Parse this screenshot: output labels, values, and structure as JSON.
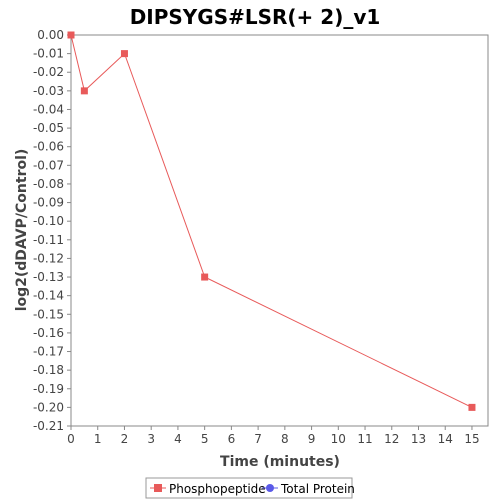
{
  "chart_data": {
    "type": "line",
    "title": "DIPSYGS#LSR(+ 2)_v1",
    "xlabel": "Time (minutes)",
    "ylabel": "log2(dDAVP/Control)",
    "xlim": [
      0,
      15.6
    ],
    "ylim": [
      -0.21,
      0.0
    ],
    "xticks": [
      0,
      1,
      2,
      3,
      4,
      5,
      6,
      7,
      8,
      9,
      10,
      11,
      12,
      13,
      14,
      15
    ],
    "yticks": [
      0.0,
      -0.01,
      -0.02,
      -0.03,
      -0.04,
      -0.05,
      -0.06,
      -0.07,
      -0.08,
      -0.09,
      -0.1,
      -0.11,
      -0.12,
      -0.13,
      -0.14,
      -0.15,
      -0.16,
      -0.17,
      -0.18,
      -0.19,
      -0.2,
      -0.21
    ],
    "ytick_labels": [
      "0.00",
      "-0.01",
      "-0.02",
      "-0.03",
      "-0.04",
      "-0.05",
      "-0.06",
      "-0.07",
      "-0.08",
      "-0.09",
      "-0.10",
      "-0.11",
      "-0.12",
      "-0.13",
      "-0.14",
      "-0.15",
      "-0.16",
      "-0.17",
      "-0.18",
      "-0.19",
      "-0.20",
      "-0.21"
    ],
    "grid": false,
    "legend_position": "bottom",
    "series": [
      {
        "name": "Phosphopeptide",
        "color": "#e85a5a",
        "marker": "square",
        "x": [
          0,
          0.5,
          2,
          5,
          15
        ],
        "y": [
          0.0,
          -0.03,
          -0.01,
          -0.13,
          -0.2
        ]
      },
      {
        "name": "Total Protein",
        "color": "#5a5ae8",
        "marker": "circle",
        "x": [],
        "y": []
      }
    ]
  }
}
